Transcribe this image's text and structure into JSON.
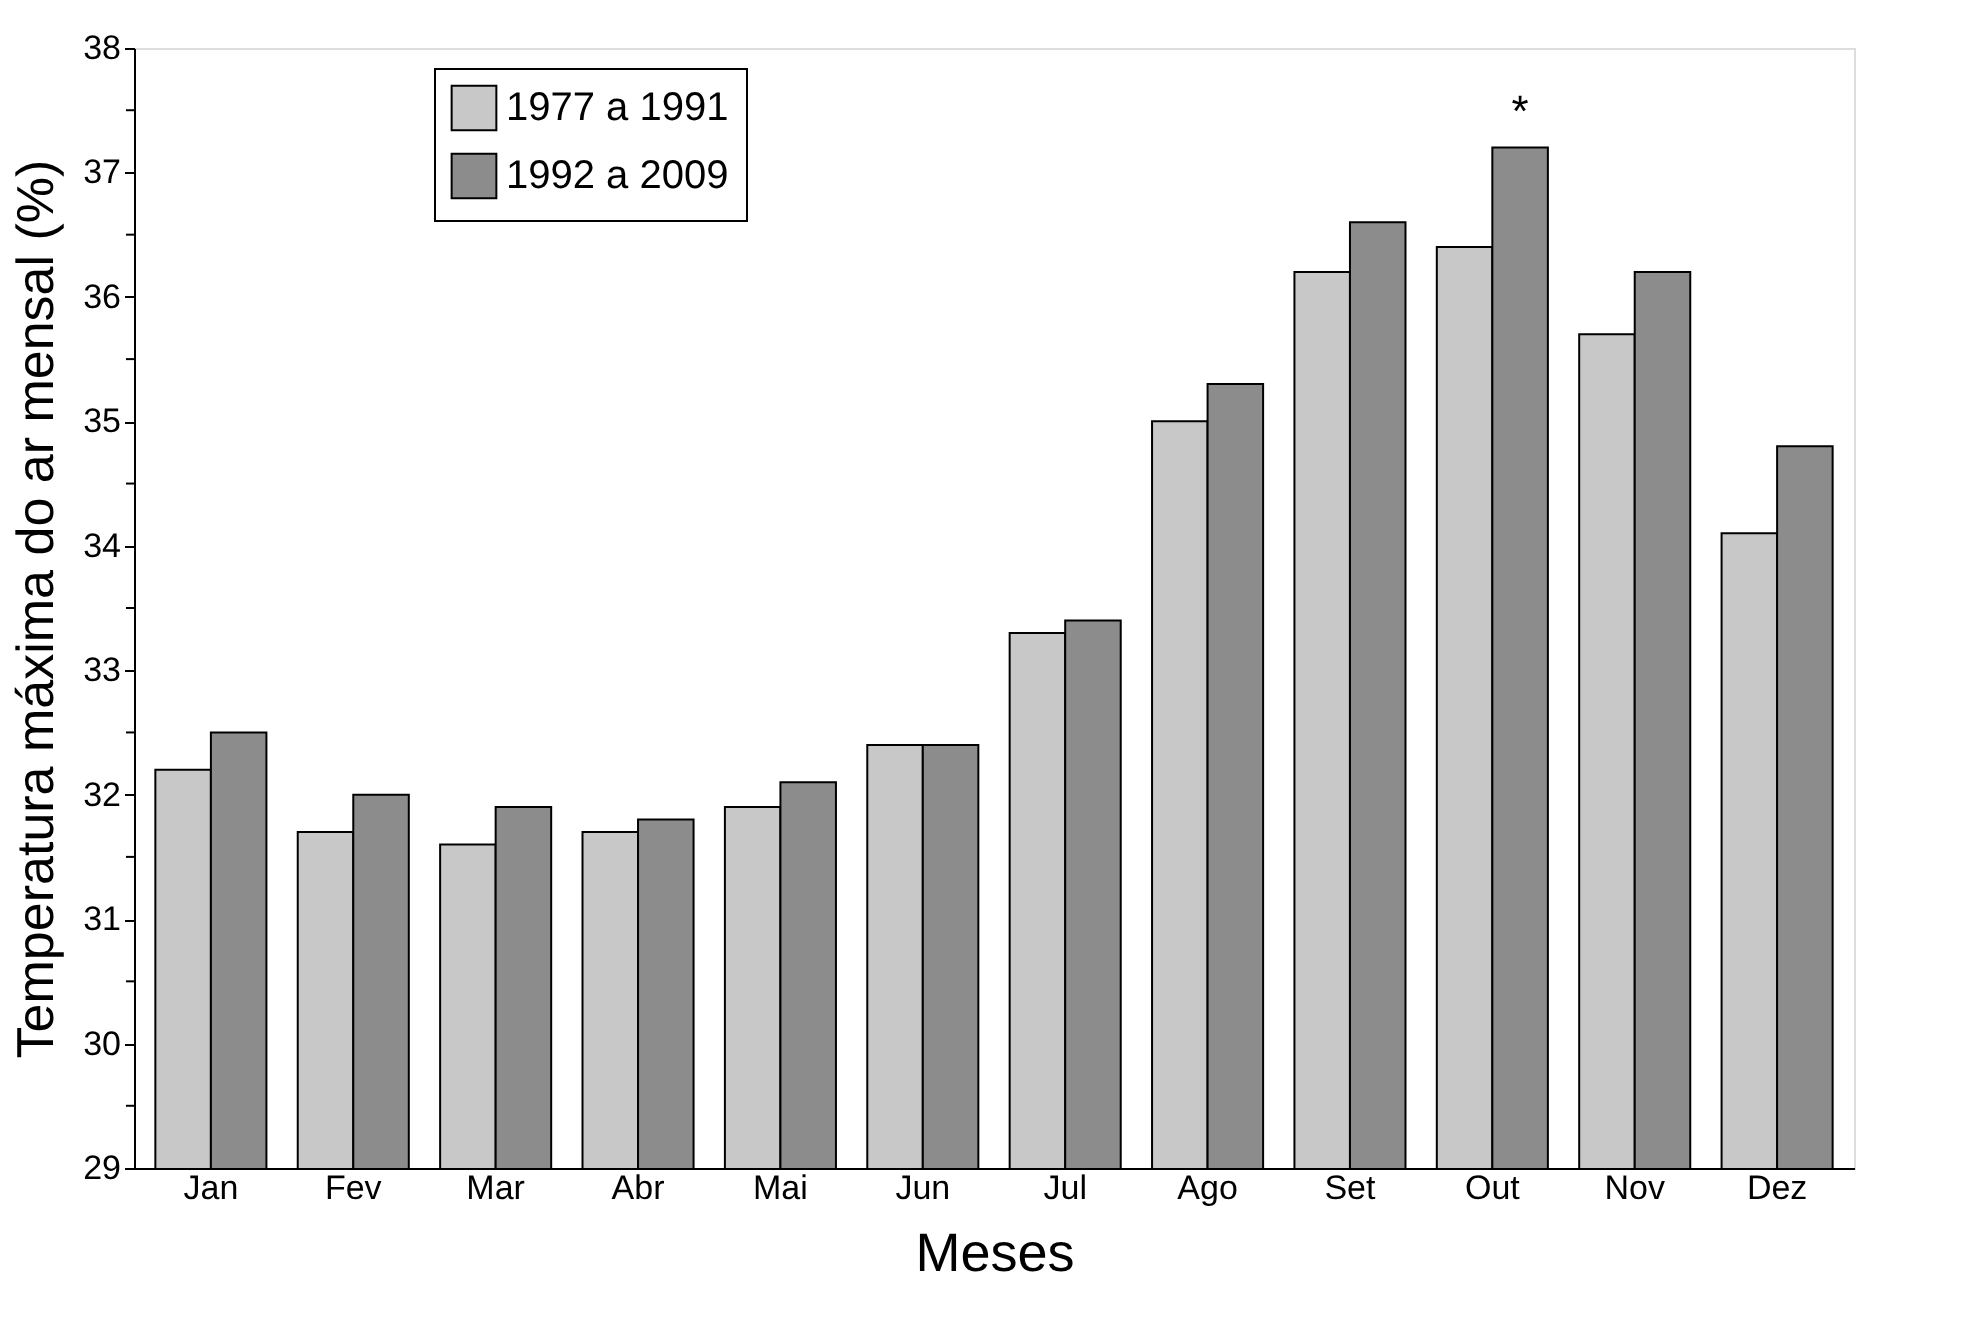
{
  "chart_data": {
    "type": "bar",
    "xlabel": "Meses",
    "ylabel": "Temperatura máxima do ar mensal (%)",
    "categories": [
      "Jan",
      "Fev",
      "Mar",
      "Abr",
      "Mai",
      "Jun",
      "Jul",
      "Ago",
      "Set",
      "Out",
      "Nov",
      "Dez"
    ],
    "series": [
      {
        "name": "1977 a 1991",
        "color": "#c8c8c8",
        "values": [
          32.2,
          31.7,
          31.6,
          31.7,
          31.9,
          32.4,
          33.3,
          35.0,
          36.2,
          36.4,
          35.7,
          34.1
        ]
      },
      {
        "name": "1992 a 2009",
        "color": "#8c8c8c",
        "values": [
          32.5,
          32.0,
          31.9,
          31.8,
          32.1,
          32.4,
          33.4,
          35.3,
          36.6,
          37.2,
          36.2,
          34.8
        ]
      }
    ],
    "ylim": [
      29,
      38
    ],
    "yticks": [
      29,
      {
        "value": 29.5,
        "label": null
      },
      30,
      {
        "value": 30.5,
        "label": null
      },
      31,
      {
        "value": 31.5,
        "label": null
      },
      32,
      {
        "value": 32.5,
        "label": null
      },
      33,
      {
        "value": 33.5,
        "label": null
      },
      34,
      {
        "value": 34.5,
        "label": null
      },
      35,
      {
        "value": 35.5,
        "label": null
      },
      36,
      {
        "value": 36.5,
        "label": null
      },
      37,
      {
        "value": 37.5,
        "label": null
      },
      38
    ],
    "annotations": [
      {
        "text": "*",
        "x": "Out",
        "y": 37.2
      }
    ],
    "legend": "top left",
    "grid": false
  }
}
